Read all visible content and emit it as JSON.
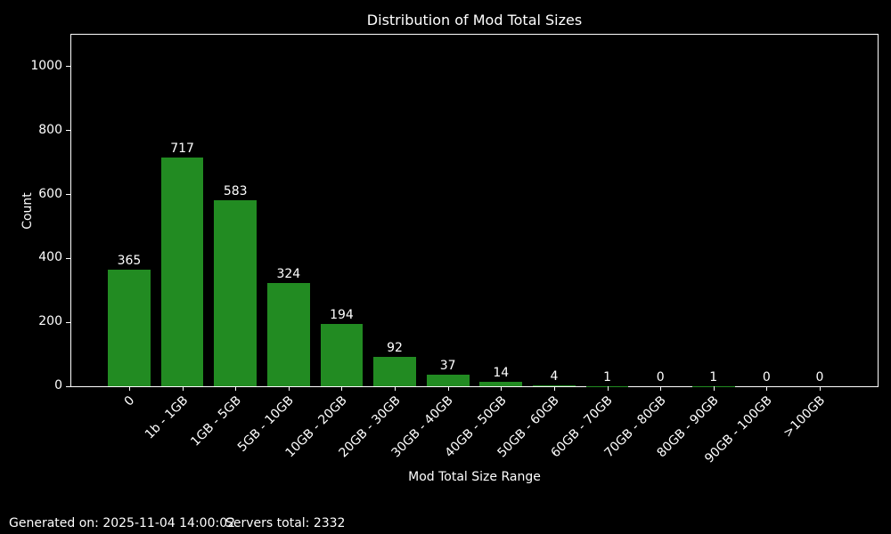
{
  "footer": {
    "generated": "Generated on: 2025-11-04 14:00:02",
    "servers_total": "Servers total: 2332"
  },
  "chart_data": {
    "type": "bar",
    "title": "Distribution of Mod Total Sizes",
    "xlabel": "Mod Total Size Range",
    "ylabel": "Count",
    "categories": [
      "0",
      "1b - 1GB",
      "1GB - 5GB",
      "5GB - 10GB",
      "10GB - 20GB",
      "20GB - 30GB",
      "30GB - 40GB",
      "40GB - 50GB",
      "50GB - 60GB",
      "60GB - 70GB",
      "70GB - 80GB",
      "80GB - 90GB",
      "90GB - 100GB",
      ">100GB"
    ],
    "values": [
      365,
      717,
      583,
      324,
      194,
      92,
      37,
      14,
      4,
      1,
      0,
      1,
      0,
      0
    ],
    "yticks": [
      0,
      200,
      400,
      600,
      800,
      1000
    ],
    "ylim": [
      0,
      1100
    ],
    "xlim": [
      -1.09,
      14.09
    ],
    "bar_width_units": 0.8,
    "x_tick_rotation_deg": 45,
    "grid": false,
    "legend": "none",
    "bar_color": "#228B22",
    "background_color": "#000000",
    "text_color": "#ffffff",
    "axis_color": "#ffffff"
  }
}
